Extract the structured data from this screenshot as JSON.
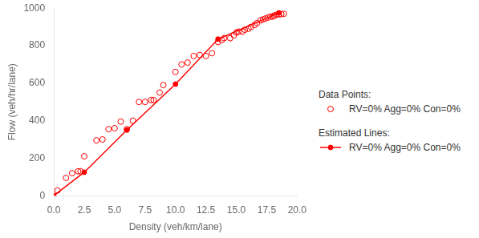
{
  "chart_data": {
    "type": "scatter",
    "xlabel": "Density (veh/km/lane)",
    "ylabel": "Flow (veh/hr/lane)",
    "xlim": [
      0.0,
      20.0
    ],
    "ylim": [
      0,
      1000
    ],
    "xticks": [
      {
        "value": 0,
        "label": "0.0"
      },
      2.5,
      {
        "value": 5,
        "label": "5.0"
      },
      7.5,
      {
        "value": 10,
        "label": "10.0"
      },
      12.5,
      {
        "value": 15,
        "label": "15.0"
      },
      17.5,
      {
        "value": 20,
        "label": "20.0"
      }
    ],
    "yticks": [
      0,
      200,
      400,
      600,
      800,
      1000
    ],
    "grid": false,
    "legend": "right",
    "annotations": [
      "Data Points:",
      "Estimated Lines:"
    ],
    "series": [
      {
        "name": "RV=0% Agg=0% Con=0%",
        "type": "scatter",
        "marker": "open_circle",
        "color": "#ff0000",
        "x": [
          0.3,
          1.0,
          1.5,
          2.0,
          2.2,
          2.5,
          3.5,
          4.0,
          4.5,
          5.0,
          5.5,
          6.0,
          6.5,
          7.0,
          7.5,
          8.0,
          8.2,
          8.7,
          9.0,
          10.0,
          10.5,
          11.0,
          11.5,
          12.0,
          12.5,
          13.0,
          13.5,
          13.8,
          14.0,
          14.5,
          14.8,
          15.0,
          15.2,
          15.5,
          15.7,
          16.0,
          16.2,
          16.5,
          16.7,
          17.0,
          17.2,
          17.4,
          17.6,
          17.8,
          18.0,
          18.1,
          18.3,
          18.5,
          18.7,
          18.9
        ],
        "values": [
          28,
          95,
          120,
          130,
          130,
          210,
          295,
          300,
          355,
          360,
          395,
          355,
          400,
          500,
          500,
          510,
          510,
          550,
          590,
          660,
          700,
          710,
          745,
          750,
          745,
          760,
          820,
          830,
          840,
          840,
          855,
          870,
          875,
          875,
          885,
          890,
          900,
          910,
          920,
          935,
          940,
          945,
          950,
          955,
          955,
          960,
          965,
          967,
          968,
          970
        ]
      },
      {
        "name": "RV=0% Agg=0% Con=0%",
        "type": "line",
        "marker": "circle",
        "line_style": "solid",
        "color": "#ff0000",
        "x": [
          0.0,
          2.5,
          6.0,
          10.0,
          13.5,
          18.5
        ],
        "values": [
          0,
          125,
          350,
          595,
          835,
          975
        ]
      }
    ]
  }
}
